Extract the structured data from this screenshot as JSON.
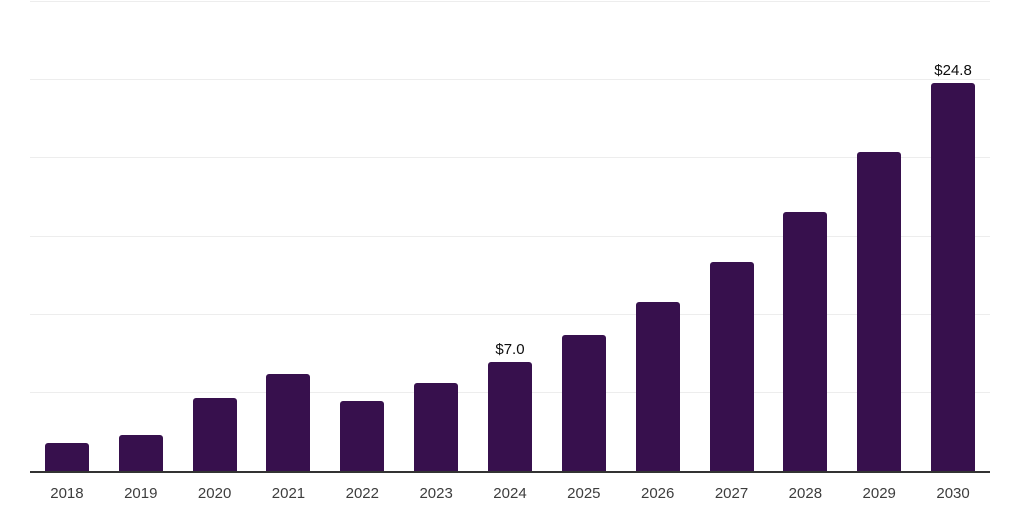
{
  "chart_data": {
    "type": "bar",
    "title": "",
    "xlabel": "",
    "ylabel": "",
    "categories": [
      "2018",
      "2019",
      "2020",
      "2021",
      "2022",
      "2023",
      "2024",
      "2025",
      "2026",
      "2027",
      "2028",
      "2029",
      "2030"
    ],
    "values": [
      1.8,
      2.3,
      4.7,
      6.2,
      4.5,
      5.6,
      7.0,
      8.7,
      10.8,
      13.4,
      16.6,
      20.4,
      24.8
    ],
    "annotations": [
      {
        "category_index": 6,
        "text": "$7.0"
      },
      {
        "category_index": 12,
        "text": "$24.8"
      }
    ],
    "ylim": [
      0,
      30
    ],
    "gridline_values": [
      5,
      10,
      15,
      20,
      25,
      30
    ],
    "grid": true,
    "legend": "none",
    "y_axis_tick_labels": "none",
    "colors": {
      "bar": "#37104D",
      "gridline": "#ededed",
      "axis_line": "#333333",
      "x_tick_label": "#3d3d3d",
      "value_label": "#0d0d0d",
      "background": "#ffffff"
    }
  }
}
